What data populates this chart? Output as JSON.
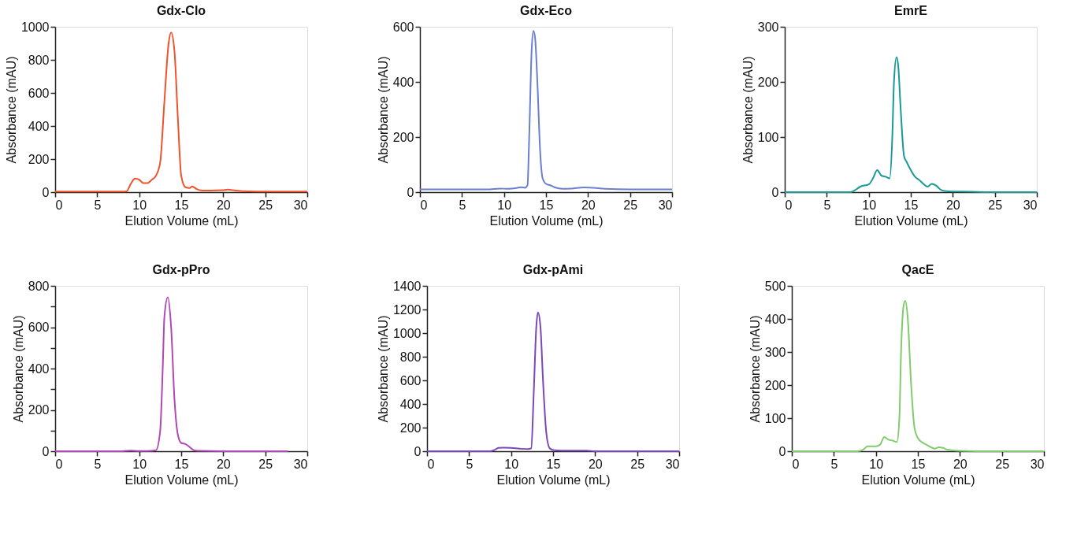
{
  "chart_data": [
    {
      "type": "line",
      "title": "Gdx-Clo",
      "xlabel": "Elution Volume (mL)",
      "ylabel": "Absorbance (mAU)",
      "grid": false,
      "xlim": [
        0,
        30
      ],
      "xticks": [
        0,
        5,
        10,
        15,
        20,
        25,
        30
      ],
      "ylim": [
        0,
        1000
      ],
      "yticks": [
        0,
        200,
        400,
        600,
        800,
        1000
      ],
      "x": [
        0,
        8,
        8.5,
        9,
        9.5,
        10,
        10.5,
        11,
        11.5,
        12,
        12.5,
        13,
        13.5,
        13.8,
        14.2,
        14.6,
        15,
        15.5,
        16,
        16.3,
        16.8,
        17.5,
        18.5,
        20,
        20.5,
        21.5,
        23,
        25,
        30
      ],
      "series": [
        {
          "color": "#f0522a",
          "values": [
            3,
            3,
            5,
            50,
            82,
            75,
            55,
            55,
            75,
            100,
            180,
            550,
            900,
            965,
            850,
            450,
            100,
            30,
            25,
            35,
            20,
            10,
            10,
            12,
            15,
            10,
            5,
            3,
            3
          ]
        }
      ]
    },
    {
      "type": "line",
      "title": "Gdx-Eco",
      "xlabel": "Elution Volume (mL)",
      "ylabel": "Absorbance (mAU)",
      "grid": false,
      "xlim": [
        0,
        30
      ],
      "xticks": [
        0,
        5,
        10,
        15,
        20,
        25,
        30
      ],
      "ylim": [
        0,
        600
      ],
      "yticks": [
        0,
        200,
        400,
        600
      ],
      "x": [
        0,
        8,
        9.5,
        10.5,
        11.5,
        12,
        12.5,
        12.8,
        13,
        13.3,
        13.5,
        13.7,
        14,
        14.3,
        14.6,
        15,
        15.5,
        16,
        17,
        18,
        19.5,
        21,
        22,
        25,
        30
      ],
      "series": [
        {
          "color": "#6b7fd0",
          "values": [
            10,
            10,
            13,
            12,
            15,
            18,
            16,
            25,
            200,
            520,
            585,
            560,
            380,
            150,
            50,
            30,
            25,
            18,
            12,
            13,
            17,
            15,
            12,
            10,
            10
          ]
        }
      ]
    },
    {
      "type": "line",
      "title": "EmrE",
      "xlabel": "Elution Volume (mL)",
      "ylabel": "Absorbance (mAU)",
      "grid": false,
      "xlim": [
        0,
        30
      ],
      "xticks": [
        0,
        5,
        10,
        15,
        20,
        25,
        30
      ],
      "ylim": [
        0,
        300
      ],
      "yticks": [
        0,
        100,
        200,
        300
      ],
      "x": [
        0,
        7.8,
        8.5,
        9,
        10,
        10.5,
        11,
        11.5,
        12,
        12.5,
        12.8,
        13,
        13.3,
        13.5,
        13.8,
        14.2,
        14.5,
        15,
        15.5,
        16,
        16.5,
        17,
        17.5,
        18,
        18.5,
        19,
        20,
        21,
        25,
        30
      ],
      "series": [
        {
          "color": "#1a9a96",
          "values": [
            0,
            0,
            5,
            10,
            14,
            25,
            40,
            30,
            28,
            25,
            100,
            200,
            245,
            230,
            150,
            65,
            55,
            40,
            28,
            22,
            15,
            10,
            15,
            12,
            5,
            2,
            1,
            1,
            0,
            0
          ]
        }
      ]
    },
    {
      "type": "line",
      "title": "Gdx-pPro",
      "xlabel": "Elution Volume (mL)",
      "ylabel": "Absorbance (mAU)",
      "grid": false,
      "xlim": [
        0,
        30
      ],
      "xticks": [
        0,
        5,
        10,
        15,
        20,
        25,
        30
      ],
      "ylim": [
        0,
        800
      ],
      "yticks": [
        0,
        {
          "value": 100,
          "label": null
        },
        200,
        {
          "value": 300,
          "label": null
        },
        400,
        {
          "value": 500,
          "label": null
        },
        600,
        {
          "value": 700,
          "label": null
        },
        800
      ],
      "x": [
        0,
        8,
        9,
        10,
        11,
        12,
        12.5,
        12.8,
        13,
        13.4,
        13.8,
        14.2,
        14.6,
        15,
        15.5,
        16,
        16.5,
        17,
        20,
        27.7
      ],
      "series": [
        {
          "color": "#b048b5",
          "values": [
            0,
            0,
            3,
            1,
            1,
            5,
            100,
            400,
            650,
            745,
            600,
            250,
            80,
            40,
            35,
            20,
            5,
            2,
            0,
            0
          ]
        }
      ]
    },
    {
      "type": "line",
      "title": "Gdx-pAmi",
      "xlabel": "Elution Volume (mL)",
      "ylabel": "Absorbance (mAU)",
      "grid": false,
      "xlim": [
        0,
        30
      ],
      "xticks": [
        0,
        5,
        10,
        15,
        20,
        25,
        30
      ],
      "ylim": [
        0,
        1400
      ],
      "yticks": [
        0,
        200,
        400,
        600,
        800,
        1000,
        1200,
        1400
      ],
      "x": [
        0,
        7.5,
        8,
        8.5,
        9,
        10,
        11,
        12,
        12.4,
        12.7,
        13,
        13.2,
        13.5,
        13.8,
        14.2,
        14.6,
        15,
        16,
        19,
        20,
        30
      ],
      "series": [
        {
          "color": "#7a48b8",
          "values": [
            0,
            0,
            10,
            28,
            30,
            28,
            22,
            18,
            25,
            500,
            1050,
            1175,
            1050,
            600,
            150,
            25,
            10,
            5,
            5,
            0,
            0
          ]
        }
      ]
    },
    {
      "type": "line",
      "title": "QacE",
      "xlabel": "Elution Volume (mL)",
      "ylabel": "Absorbance (mAU)",
      "grid": false,
      "xlim": [
        0,
        30
      ],
      "xticks": [
        0,
        5,
        10,
        15,
        20,
        25,
        30
      ],
      "ylim": [
        0,
        500
      ],
      "yticks": [
        0,
        100,
        200,
        300,
        400,
        500
      ],
      "x": [
        0,
        7.8,
        8.5,
        9,
        10,
        10.5,
        11,
        11.5,
        12,
        12.5,
        12.8,
        13,
        13.3,
        13.5,
        13.8,
        14.2,
        14.6,
        15,
        15.5,
        16,
        17,
        17.5,
        18,
        18.5,
        19,
        20,
        22,
        30
      ],
      "series": [
        {
          "color": "#80cc6c",
          "values": [
            0,
            0,
            5,
            15,
            15,
            20,
            43,
            35,
            32,
            28,
            100,
            300,
            440,
            455,
            400,
            200,
            70,
            40,
            27,
            20,
            8,
            12,
            10,
            5,
            3,
            1,
            0,
            0
          ]
        }
      ]
    }
  ]
}
